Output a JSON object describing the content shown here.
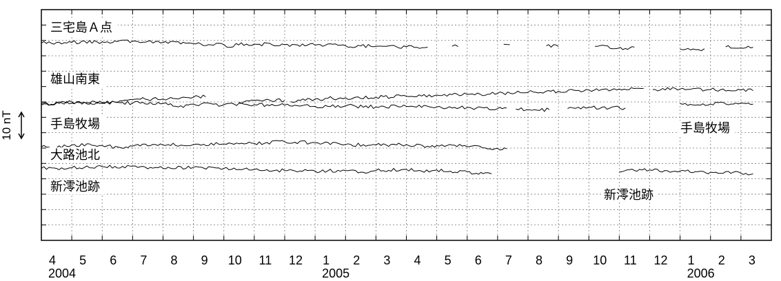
{
  "chart_data": {
    "type": "line",
    "title": "",
    "xlabel": "",
    "ylabel": "",
    "grid": true,
    "x_months": [
      "4",
      "5",
      "6",
      "7",
      "8",
      "9",
      "10",
      "11",
      "12",
      "1",
      "2",
      "3",
      "4",
      "5",
      "6",
      "7",
      "8",
      "9",
      "10",
      "11",
      "12",
      "1",
      "2",
      "3"
    ],
    "x_years": [
      {
        "label": "2004",
        "month_index": 0
      },
      {
        "label": "2005",
        "month_index": 9
      },
      {
        "label": "2006",
        "month_index": 21
      }
    ],
    "xlim": [
      "2004-04",
      "2006-04"
    ],
    "scale_bar": {
      "label": "10 nT",
      "value": 10
    },
    "stations": [
      {
        "name": "三宅島Ａ点",
        "show_right_label": false
      },
      {
        "name": "雄山南東",
        "show_right_label": false
      },
      {
        "name": "手島牧場",
        "show_right_label": true
      },
      {
        "name": "大路池北",
        "show_right_label": false
      },
      {
        "name": "新澪池跡",
        "show_right_label": true
      }
    ],
    "series": [
      {
        "name": "三宅島Ａ点",
        "color": "#000000",
        "x": [
          0.0,
          1.0,
          2.0,
          3.0,
          3.5,
          4.0,
          5.0,
          6.0,
          6.2,
          6.4,
          7.0,
          8.0,
          9.0,
          10.0,
          10.5,
          11.0,
          12.0,
          12.7,
          13.0,
          13.5,
          13.7,
          14.2,
          15.2,
          15.4,
          16.2,
          16.6,
          17.0,
          18.0,
          18.2,
          19.2,
          19.5,
          20.5,
          21.0,
          21.6,
          21.8,
          22.2,
          22.5,
          23.0,
          23.4
        ],
        "y": [
          1.0,
          1.5,
          2.0,
          2.8,
          2.5,
          1.5,
          0.5,
          -0.5,
          -3.0,
          0.5,
          0.0,
          -0.5,
          -1.0,
          -1.5,
          -1.7,
          -2.0,
          -2.5,
          -2.8,
          null,
          -2.0,
          -2.2,
          null,
          -0.2,
          -0.5,
          null,
          -1.5,
          -2.2,
          null,
          -2.0,
          -4.0,
          -2.8,
          null,
          -4.5,
          -5.0,
          -4.2,
          null,
          -2.5,
          -3.5,
          -3.0
        ]
      },
      {
        "name": "雄山南東",
        "color": "#000000",
        "x": [
          0.0,
          1.0,
          2.0,
          3.0,
          4.0,
          5.0,
          5.4,
          null,
          6.5,
          7.5,
          8.0,
          null,
          8.2,
          9.0,
          10.0,
          11.0,
          12.0,
          13.0,
          14.0,
          15.0,
          16.0,
          17.0,
          18.0,
          19.0,
          19.8,
          null,
          20.1,
          21.0,
          22.0,
          23.0,
          23.4
        ],
        "y": [
          -4.0,
          -1.0,
          -2.5,
          1.0,
          1.5,
          3.0,
          3.5,
          null,
          -1.5,
          0.5,
          0.0,
          null,
          -1.0,
          1.5,
          2.5,
          3.0,
          4.0,
          5.0,
          5.5,
          6.5,
          7.5,
          8.5,
          9.5,
          10.5,
          11.0,
          null,
          10.0,
          10.5,
          10.0,
          9.5,
          9.0
        ]
      },
      {
        "name": "手島牧場",
        "color": "#000000",
        "x": [
          0.0,
          1.0,
          2.0,
          3.0,
          4.0,
          4.5,
          5.0,
          6.0,
          7.0,
          8.0,
          9.0,
          10.0,
          11.0,
          12.0,
          13.0,
          13.5,
          14.0,
          14.3,
          15.0,
          15.3,
          null,
          15.6,
          16.3,
          16.7,
          null,
          17.3,
          18.0,
          19.2,
          null,
          21.0,
          22.0,
          23.0,
          23.4
        ],
        "y": [
          1.0,
          1.5,
          2.0,
          1.5,
          1.0,
          -2.0,
          0.5,
          0.0,
          0.0,
          -0.5,
          -1.5,
          -1.0,
          -2.0,
          -1.5,
          -2.0,
          -3.0,
          -2.5,
          -3.0,
          -3.5,
          -3.0,
          null,
          -4.0,
          -5.0,
          -4.5,
          null,
          -3.5,
          -2.5,
          -3.0,
          null,
          1.0,
          0.5,
          1.5,
          0.5
        ]
      },
      {
        "name": "大路池北",
        "color": "#000000",
        "x": [
          0.0,
          0.5,
          1.0,
          2.0,
          2.7,
          3.0,
          4.0,
          5.0,
          6.0,
          7.0,
          8.0,
          9.0,
          10.0,
          11.0,
          12.0,
          12.7,
          13.0,
          13.5,
          14.0,
          14.5,
          15.0,
          15.3
        ],
        "y": [
          0.0,
          -1.0,
          1.5,
          1.0,
          -1.5,
          0.5,
          1.5,
          2.0,
          2.5,
          3.0,
          4.5,
          3.5,
          2.0,
          1.5,
          2.0,
          0.5,
          1.0,
          1.5,
          0.0,
          -1.0,
          -1.5,
          -2.0
        ]
      },
      {
        "name": "新澪池跡",
        "color": "#000000",
        "x": [
          0.0,
          1.0,
          2.0,
          3.0,
          4.0,
          5.0,
          6.0,
          7.0,
          8.0,
          9.0,
          10.0,
          10.5,
          11.0,
          12.0,
          12.5,
          13.0,
          13.3,
          13.6,
          14.0,
          14.3,
          14.6,
          14.8,
          null,
          19.0,
          19.5,
          20.0,
          20.5,
          21.0,
          21.5,
          22.0,
          22.5,
          23.0,
          23.4
        ],
        "y": [
          1.0,
          1.5,
          2.5,
          3.0,
          1.0,
          2.0,
          1.0,
          0.0,
          -1.0,
          -1.5,
          -1.0,
          -2.5,
          -1.0,
          0.0,
          -1.5,
          -0.5,
          -2.0,
          -2.5,
          -2.0,
          -3.5,
          -3.0,
          -4.0,
          null,
          -2.5,
          -1.0,
          -0.5,
          -1.0,
          -1.5,
          -2.0,
          -2.5,
          -2.0,
          -3.5,
          -4.0
        ]
      }
    ]
  }
}
